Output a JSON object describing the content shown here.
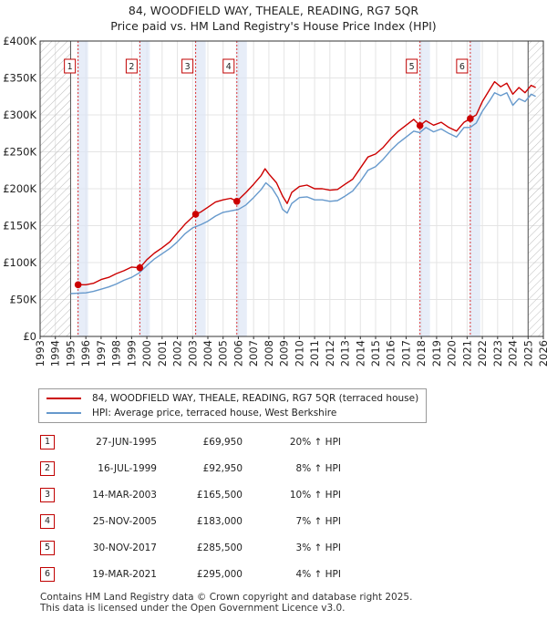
{
  "chart_data": {
    "type": "line",
    "title": "84, WOODFIELD WAY, THEALE, READING, RG7 5QR",
    "subtitle": "Price paid vs. HM Land Registry's House Price Index (HPI)",
    "xlim": [
      1993,
      2026
    ],
    "ylim": [
      0,
      400000
    ],
    "y_ticks": [
      0,
      50000,
      100000,
      150000,
      200000,
      250000,
      300000,
      350000,
      400000
    ],
    "y_tick_labels": [
      "£0",
      "£50K",
      "£100K",
      "£150K",
      "£200K",
      "£250K",
      "£300K",
      "£350K",
      "£400K"
    ],
    "x_ticks": [
      1993,
      1994,
      1995,
      1996,
      1997,
      1998,
      1999,
      2000,
      2001,
      2002,
      2003,
      2004,
      2005,
      2006,
      2007,
      2008,
      2009,
      2010,
      2011,
      2012,
      2013,
      2014,
      2015,
      2016,
      2017,
      2018,
      2019,
      2020,
      2021,
      2022,
      2023,
      2024,
      2025,
      2026
    ],
    "hatched_before": 1995.0,
    "hatched_after": 2025.0,
    "series": [
      {
        "name": "84, WOODFIELD WAY, THEALE, READING, RG7 5QR (terraced house)",
        "color": "#cc0000",
        "x": [
          1995.49,
          1996.0,
          1996.5,
          1997.0,
          1997.5,
          1998.0,
          1998.5,
          1999.0,
          1999.54,
          2000.0,
          2000.5,
          2001.0,
          2001.5,
          2002.0,
          2002.5,
          2003.2,
          2003.5,
          2004.0,
          2004.5,
          2005.0,
          2005.5,
          2005.9,
          2006.5,
          2007.0,
          2007.5,
          2007.75,
          2008.0,
          2008.5,
          2008.9,
          2009.2,
          2009.5,
          2010.0,
          2010.5,
          2011.0,
          2011.5,
          2012.0,
          2012.5,
          2013.0,
          2013.5,
          2014.0,
          2014.5,
          2015.0,
          2015.5,
          2016.0,
          2016.5,
          2017.0,
          2017.5,
          2017.91,
          2018.3,
          2018.8,
          2019.3,
          2019.8,
          2020.3,
          2020.8,
          2021.21,
          2021.6,
          2022.0,
          2022.5,
          2022.8,
          2023.2,
          2023.6,
          2024.0,
          2024.4,
          2024.8,
          2025.2,
          2025.5
        ],
        "values": [
          69950,
          70000,
          72000,
          77000,
          80000,
          85000,
          89000,
          94000,
          92950,
          104000,
          113000,
          120000,
          128000,
          140000,
          152000,
          165500,
          168000,
          175000,
          182000,
          185000,
          187000,
          183000,
          195000,
          206000,
          218000,
          227000,
          220000,
          208000,
          190000,
          180000,
          195000,
          203000,
          205000,
          200000,
          200000,
          198000,
          199000,
          206000,
          213000,
          228000,
          243000,
          247000,
          256000,
          268000,
          278000,
          286000,
          294000,
          285500,
          292000,
          286000,
          290000,
          283000,
          278000,
          290000,
          295000,
          300000,
          318000,
          335000,
          345000,
          338000,
          343000,
          328000,
          337000,
          330000,
          340000,
          337000
        ]
      },
      {
        "name": "HPI: Average price, terraced house, West Berkshire",
        "color": "#6699cc",
        "x": [
          1995.0,
          1995.5,
          1996.0,
          1996.5,
          1997.0,
          1997.5,
          1998.0,
          1998.5,
          1999.0,
          1999.5,
          2000.0,
          2000.5,
          2001.0,
          2001.5,
          2002.0,
          2002.5,
          2003.0,
          2003.5,
          2004.0,
          2004.5,
          2005.0,
          2005.5,
          2006.0,
          2006.5,
          2007.0,
          2007.5,
          2007.8,
          2008.2,
          2008.6,
          2008.9,
          2009.2,
          2009.5,
          2010.0,
          2010.5,
          2011.0,
          2011.5,
          2012.0,
          2012.5,
          2013.0,
          2013.5,
          2014.0,
          2014.5,
          2015.0,
          2015.5,
          2016.0,
          2016.5,
          2017.0,
          2017.5,
          2017.9,
          2018.3,
          2018.8,
          2019.3,
          2019.8,
          2020.3,
          2020.8,
          2021.2,
          2021.6,
          2022.0,
          2022.5,
          2022.8,
          2023.2,
          2023.6,
          2024.0,
          2024.4,
          2024.8,
          2025.2,
          2025.5
        ],
        "values": [
          58000,
          58500,
          59000,
          61000,
          64000,
          67000,
          71000,
          76000,
          80000,
          86000,
          96000,
          105000,
          112000,
          119000,
          128000,
          139000,
          147000,
          151000,
          156000,
          163000,
          168000,
          170000,
          172000,
          178000,
          188000,
          199000,
          208000,
          201000,
          188000,
          172000,
          167000,
          180000,
          188000,
          189000,
          185000,
          185000,
          183000,
          184000,
          190000,
          197000,
          210000,
          225000,
          230000,
          240000,
          252000,
          262000,
          270000,
          278000,
          276000,
          283000,
          277000,
          281000,
          275000,
          270000,
          283000,
          283000,
          289000,
          305000,
          320000,
          330000,
          326000,
          330000,
          313000,
          322000,
          318000,
          328000,
          325000
        ]
      }
    ],
    "sales": [
      {
        "num": "1",
        "x": 1995.49,
        "value": 69950
      },
      {
        "num": "2",
        "x": 1999.54,
        "value": 92950
      },
      {
        "num": "3",
        "x": 2003.2,
        "value": 165500
      },
      {
        "num": "4",
        "x": 2005.9,
        "value": 183000
      },
      {
        "num": "5",
        "x": 2017.91,
        "value": 285500
      },
      {
        "num": "6",
        "x": 2021.21,
        "value": 295000
      }
    ]
  },
  "legend": {
    "property_label": "84, WOODFIELD WAY, THEALE, READING, RG7 5QR (terraced house)",
    "hpi_label": "HPI: Average price, terraced house, West Berkshire"
  },
  "table": [
    {
      "num": "1",
      "date": "27-JUN-1995",
      "price": "£69,950",
      "hpi": "20% ↑ HPI"
    },
    {
      "num": "2",
      "date": "16-JUL-1999",
      "price": "£92,950",
      "hpi": "8% ↑ HPI"
    },
    {
      "num": "3",
      "date": "14-MAR-2003",
      "price": "£165,500",
      "hpi": "10% ↑ HPI"
    },
    {
      "num": "4",
      "date": "25-NOV-2005",
      "price": "£183,000",
      "hpi": "7% ↑ HPI"
    },
    {
      "num": "5",
      "date": "30-NOV-2017",
      "price": "£285,500",
      "hpi": "3% ↑ HPI"
    },
    {
      "num": "6",
      "date": "19-MAR-2021",
      "price": "£295,000",
      "hpi": "4% ↑ HPI"
    }
  ],
  "footer": {
    "line1": "Contains HM Land Registry data © Crown copyright and database right 2025.",
    "line2": "This data is licensed under the Open Government Licence v3.0."
  }
}
